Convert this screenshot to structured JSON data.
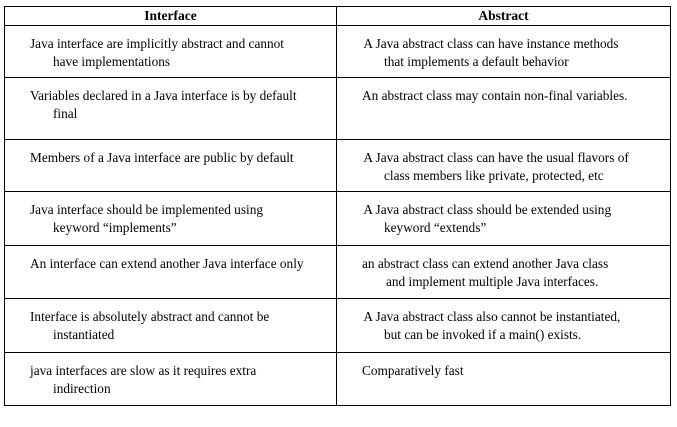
{
  "table": {
    "headers": [
      "Interface",
      "Abstract"
    ],
    "rows": [
      {
        "interface": [
          "Java interface are implicitly abstract and cannot",
          "have implementations"
        ],
        "abstract": [
          " A Java abstract class can have instance methods",
          "that implements a default behavior"
        ]
      },
      {
        "interface": [
          "Variables declared in a Java interface is by default",
          "final"
        ],
        "abstract": [
          "An abstract class may contain non-final variables."
        ]
      },
      {
        "interface": [
          "Members of a Java interface are public by default"
        ],
        "abstract": [
          " A Java abstract class can have the usual flavors of",
          "class members like private, protected, etc"
        ]
      },
      {
        "interface": [
          "Java interface should be implemented using",
          "keyword “implements”"
        ],
        "abstract": [
          " A Java abstract class should be extended using",
          "keyword “extends”"
        ]
      },
      {
        "interface": [
          "An interface can extend another Java interface only"
        ],
        "abstract": [
          "an abstract class can extend another Java class",
          "and implement multiple Java interfaces."
        ]
      },
      {
        "interface": [
          "Interface is absolutely abstract and cannot be",
          "instantiated"
        ],
        "abstract": [
          " A Java abstract class also cannot be instantiated,",
          "but can be invoked if a main() exists."
        ]
      },
      {
        "interface": [
          "java interfaces are slow as it requires extra",
          "indirection"
        ],
        "abstract": [
          "Comparatively fast"
        ]
      }
    ]
  }
}
